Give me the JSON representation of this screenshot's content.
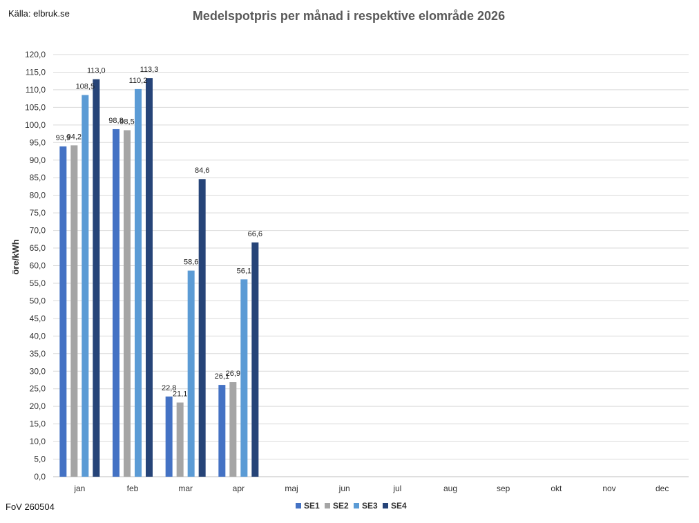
{
  "source_text": "Källa: elbruk.se",
  "footer_text": "FoV 260504",
  "chart_data": {
    "type": "bar",
    "title": "Medelspotpris per månad i respektive elområde 2026",
    "xlabel": "",
    "ylabel": "öre/kWh",
    "ylim": [
      0,
      120
    ],
    "ytick_step": 5,
    "grid": true,
    "legend_position": "bottom",
    "categories": [
      "jan",
      "feb",
      "mar",
      "apr",
      "maj",
      "jun",
      "jul",
      "aug",
      "sep",
      "okt",
      "nov",
      "dec"
    ],
    "series": [
      {
        "name": "SE1",
        "color": "#4472C4",
        "values": [
          93.9,
          98.8,
          22.8,
          26.1,
          null,
          null,
          null,
          null,
          null,
          null,
          null,
          null
        ],
        "labels": [
          "93,9",
          "98,8",
          "22,8",
          "26,1"
        ]
      },
      {
        "name": "SE2",
        "color": "#A5A5A5",
        "values": [
          94.2,
          98.5,
          21.1,
          26.9,
          null,
          null,
          null,
          null,
          null,
          null,
          null,
          null
        ],
        "labels": [
          "94,2",
          "98,5",
          "21,1",
          "26,9"
        ]
      },
      {
        "name": "SE3",
        "color": "#5B9BD5",
        "values": [
          108.5,
          110.2,
          58.6,
          56.1,
          null,
          null,
          null,
          null,
          null,
          null,
          null,
          null
        ],
        "labels": [
          "108,5",
          "110,2",
          "58,6",
          "56,1"
        ]
      },
      {
        "name": "SE4",
        "color": "#264478",
        "values": [
          113.0,
          113.3,
          84.6,
          66.6,
          null,
          null,
          null,
          null,
          null,
          null,
          null,
          null
        ],
        "labels": [
          "113,0",
          "113,3",
          "84,6",
          "66,6"
        ]
      }
    ]
  }
}
